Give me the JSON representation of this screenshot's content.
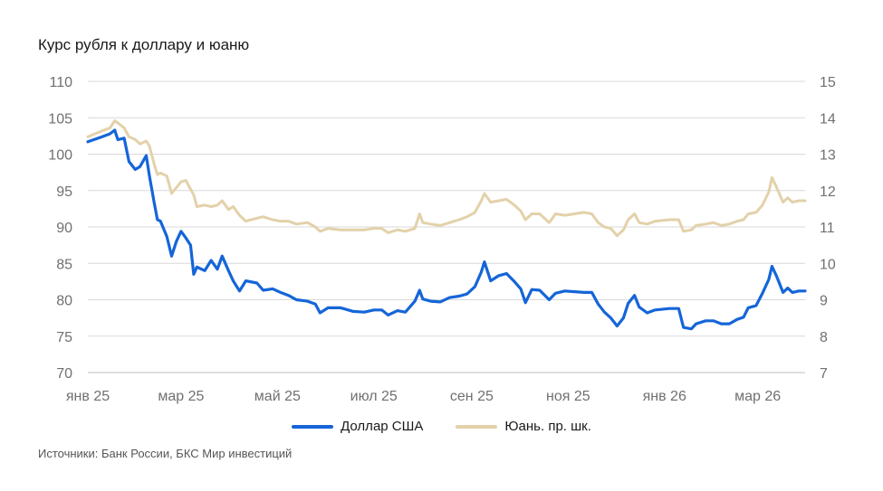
{
  "title": "Курс рубля к доллару и юаню",
  "source": "Источники: Банк России, БКС Мир инвестиций",
  "colors": {
    "usd": "#1565d8",
    "cny": "#e3d1a9",
    "grid": "#d9d9d9",
    "tick": "#707070"
  },
  "chart_data": {
    "type": "line",
    "title": "Курс рубля к доллару и юаню",
    "x_labels": [
      "янв 25",
      "мар 25",
      "май 25",
      "июл 25",
      "сен 25",
      "ноя 25",
      "янв 26",
      "мар 26"
    ],
    "x_label_dates": [
      "2025-01-01",
      "2025-03-01",
      "2025-05-01",
      "2025-07-01",
      "2025-09-01",
      "2025-11-01",
      "2026-01-01",
      "2026-03-01"
    ],
    "x_range": [
      "2025-01-01",
      "2026-03-31"
    ],
    "y_left": {
      "min": 70,
      "max": 110,
      "ticks": [
        "70",
        "75",
        "80",
        "85",
        "90",
        "95",
        "100",
        "105",
        "110"
      ]
    },
    "y_right": {
      "min": 7,
      "max": 15,
      "ticks": [
        "7",
        "8",
        "9",
        "10",
        "11",
        "12",
        "13",
        "14",
        "15"
      ]
    },
    "grid": true,
    "legend_position": "bottom",
    "series": [
      {
        "name": "Доллар США",
        "axis": "left",
        "color": "#1565d8",
        "points": [
          [
            "2025-01-01",
            101.7
          ],
          [
            "2025-01-10",
            102.4
          ],
          [
            "2025-01-15",
            102.8
          ],
          [
            "2025-01-18",
            103.3
          ],
          [
            "2025-01-20",
            102.0
          ],
          [
            "2025-01-24",
            102.2
          ],
          [
            "2025-01-27",
            99.0
          ],
          [
            "2025-01-31",
            97.9
          ],
          [
            "2025-02-03",
            98.3
          ],
          [
            "2025-02-07",
            99.8
          ],
          [
            "2025-02-09",
            97.0
          ],
          [
            "2025-02-12",
            93.3
          ],
          [
            "2025-02-14",
            91.0
          ],
          [
            "2025-02-16",
            90.8
          ],
          [
            "2025-02-20",
            88.7
          ],
          [
            "2025-02-23",
            86.0
          ],
          [
            "2025-02-26",
            88.0
          ],
          [
            "2025-03-01",
            89.4
          ],
          [
            "2025-03-04",
            88.5
          ],
          [
            "2025-03-07",
            87.5
          ],
          [
            "2025-03-09",
            83.5
          ],
          [
            "2025-03-11",
            84.5
          ],
          [
            "2025-03-16",
            84.0
          ],
          [
            "2025-03-20",
            85.4
          ],
          [
            "2025-03-24",
            84.2
          ],
          [
            "2025-03-27",
            86.0
          ],
          [
            "2025-03-31",
            84.0
          ],
          [
            "2025-04-03",
            82.6
          ],
          [
            "2025-04-07",
            81.2
          ],
          [
            "2025-04-11",
            82.6
          ],
          [
            "2025-04-18",
            82.3
          ],
          [
            "2025-04-22",
            81.3
          ],
          [
            "2025-04-28",
            81.5
          ],
          [
            "2025-05-03",
            81.0
          ],
          [
            "2025-05-08",
            80.6
          ],
          [
            "2025-05-13",
            80.0
          ],
          [
            "2025-05-20",
            79.8
          ],
          [
            "2025-05-25",
            79.4
          ],
          [
            "2025-05-28",
            78.2
          ],
          [
            "2025-06-02",
            78.9
          ],
          [
            "2025-06-10",
            78.9
          ],
          [
            "2025-06-18",
            78.4
          ],
          [
            "2025-06-25",
            78.3
          ],
          [
            "2025-07-01",
            78.6
          ],
          [
            "2025-07-06",
            78.6
          ],
          [
            "2025-07-10",
            77.9
          ],
          [
            "2025-07-16",
            78.5
          ],
          [
            "2025-07-21",
            78.3
          ],
          [
            "2025-07-27",
            79.8
          ],
          [
            "2025-07-30",
            81.3
          ],
          [
            "2025-08-01",
            80.1
          ],
          [
            "2025-08-06",
            79.8
          ],
          [
            "2025-08-12",
            79.7
          ],
          [
            "2025-08-18",
            80.3
          ],
          [
            "2025-08-24",
            80.5
          ],
          [
            "2025-08-29",
            80.8
          ],
          [
            "2025-09-03",
            81.8
          ],
          [
            "2025-09-07",
            83.8
          ],
          [
            "2025-09-09",
            85.2
          ],
          [
            "2025-09-13",
            82.6
          ],
          [
            "2025-09-18",
            83.3
          ],
          [
            "2025-09-23",
            83.6
          ],
          [
            "2025-09-28",
            82.5
          ],
          [
            "2025-10-02",
            81.5
          ],
          [
            "2025-10-05",
            79.6
          ],
          [
            "2025-10-09",
            81.4
          ],
          [
            "2025-10-14",
            81.3
          ],
          [
            "2025-10-20",
            80.0
          ],
          [
            "2025-10-24",
            80.9
          ],
          [
            "2025-10-30",
            81.2
          ],
          [
            "2025-11-05",
            81.1
          ],
          [
            "2025-11-11",
            81.0
          ],
          [
            "2025-11-16",
            81.0
          ],
          [
            "2025-11-20",
            79.4
          ],
          [
            "2025-11-24",
            78.3
          ],
          [
            "2025-11-28",
            77.5
          ],
          [
            "2025-12-02",
            76.4
          ],
          [
            "2025-12-06",
            77.5
          ],
          [
            "2025-12-09",
            79.5
          ],
          [
            "2025-12-13",
            80.6
          ],
          [
            "2025-12-16",
            79.0
          ],
          [
            "2025-12-21",
            78.2
          ],
          [
            "2025-12-26",
            78.6
          ],
          [
            "2026-01-04",
            78.8
          ],
          [
            "2026-01-10",
            78.8
          ],
          [
            "2026-01-13",
            76.2
          ],
          [
            "2026-01-18",
            76.0
          ],
          [
            "2026-01-21",
            76.7
          ],
          [
            "2026-01-27",
            77.1
          ],
          [
            "2026-02-01",
            77.1
          ],
          [
            "2026-02-06",
            76.7
          ],
          [
            "2026-02-11",
            76.7
          ],
          [
            "2026-02-16",
            77.3
          ],
          [
            "2026-02-20",
            77.6
          ],
          [
            "2026-02-23",
            78.9
          ],
          [
            "2026-02-28",
            79.2
          ],
          [
            "2026-03-04",
            80.9
          ],
          [
            "2026-03-08",
            82.8
          ],
          [
            "2026-03-10",
            84.6
          ],
          [
            "2026-03-13",
            83.2
          ],
          [
            "2026-03-17",
            81.0
          ],
          [
            "2026-03-20",
            81.6
          ],
          [
            "2026-03-23",
            81.0
          ],
          [
            "2026-03-27",
            81.2
          ],
          [
            "2026-03-31",
            81.2
          ]
        ]
      },
      {
        "name": "Юань. пр. шк.",
        "axis": "right",
        "color": "#e3d1a9",
        "points": [
          [
            "2025-01-01",
            13.48
          ],
          [
            "2025-01-10",
            13.64
          ],
          [
            "2025-01-15",
            13.72
          ],
          [
            "2025-01-18",
            13.92
          ],
          [
            "2025-01-20",
            13.86
          ],
          [
            "2025-01-24",
            13.72
          ],
          [
            "2025-01-27",
            13.48
          ],
          [
            "2025-01-31",
            13.4
          ],
          [
            "2025-02-03",
            13.28
          ],
          [
            "2025-02-07",
            13.36
          ],
          [
            "2025-02-09",
            13.22
          ],
          [
            "2025-02-12",
            12.72
          ],
          [
            "2025-02-14",
            12.44
          ],
          [
            "2025-02-16",
            12.48
          ],
          [
            "2025-02-20",
            12.4
          ],
          [
            "2025-02-23",
            11.92
          ],
          [
            "2025-02-26",
            12.08
          ],
          [
            "2025-03-01",
            12.24
          ],
          [
            "2025-03-04",
            12.28
          ],
          [
            "2025-03-07",
            12.04
          ],
          [
            "2025-03-09",
            11.88
          ],
          [
            "2025-03-11",
            11.56
          ],
          [
            "2025-03-16",
            11.6
          ],
          [
            "2025-03-20",
            11.56
          ],
          [
            "2025-03-24",
            11.6
          ],
          [
            "2025-03-27",
            11.72
          ],
          [
            "2025-03-31",
            11.48
          ],
          [
            "2025-04-03",
            11.56
          ],
          [
            "2025-04-07",
            11.32
          ],
          [
            "2025-04-11",
            11.16
          ],
          [
            "2025-04-18",
            11.24
          ],
          [
            "2025-04-22",
            11.28
          ],
          [
            "2025-04-28",
            11.2
          ],
          [
            "2025-05-03",
            11.16
          ],
          [
            "2025-05-08",
            11.16
          ],
          [
            "2025-05-13",
            11.08
          ],
          [
            "2025-05-20",
            11.12
          ],
          [
            "2025-05-25",
            11.0
          ],
          [
            "2025-05-28",
            10.88
          ],
          [
            "2025-06-02",
            10.96
          ],
          [
            "2025-06-10",
            10.92
          ],
          [
            "2025-06-18",
            10.92
          ],
          [
            "2025-06-25",
            10.92
          ],
          [
            "2025-07-01",
            10.96
          ],
          [
            "2025-07-06",
            10.96
          ],
          [
            "2025-07-10",
            10.84
          ],
          [
            "2025-07-16",
            10.92
          ],
          [
            "2025-07-21",
            10.88
          ],
          [
            "2025-07-27",
            10.96
          ],
          [
            "2025-07-30",
            11.36
          ],
          [
            "2025-08-01",
            11.12
          ],
          [
            "2025-08-06",
            11.08
          ],
          [
            "2025-08-12",
            11.04
          ],
          [
            "2025-08-18",
            11.12
          ],
          [
            "2025-08-24",
            11.2
          ],
          [
            "2025-08-29",
            11.28
          ],
          [
            "2025-09-03",
            11.4
          ],
          [
            "2025-09-07",
            11.72
          ],
          [
            "2025-09-09",
            11.92
          ],
          [
            "2025-09-13",
            11.68
          ],
          [
            "2025-09-18",
            11.72
          ],
          [
            "2025-09-23",
            11.76
          ],
          [
            "2025-09-28",
            11.6
          ],
          [
            "2025-10-02",
            11.44
          ],
          [
            "2025-10-05",
            11.2
          ],
          [
            "2025-10-09",
            11.36
          ],
          [
            "2025-10-14",
            11.36
          ],
          [
            "2025-10-20",
            11.12
          ],
          [
            "2025-10-24",
            11.36
          ],
          [
            "2025-10-30",
            11.32
          ],
          [
            "2025-11-05",
            11.36
          ],
          [
            "2025-11-11",
            11.4
          ],
          [
            "2025-11-16",
            11.36
          ],
          [
            "2025-11-20",
            11.12
          ],
          [
            "2025-11-24",
            11.0
          ],
          [
            "2025-11-28",
            10.96
          ],
          [
            "2025-12-02",
            10.76
          ],
          [
            "2025-12-06",
            10.92
          ],
          [
            "2025-12-09",
            11.2
          ],
          [
            "2025-12-13",
            11.36
          ],
          [
            "2025-12-16",
            11.12
          ],
          [
            "2025-12-21",
            11.08
          ],
          [
            "2025-12-26",
            11.16
          ],
          [
            "2026-01-04",
            11.2
          ],
          [
            "2026-01-10",
            11.2
          ],
          [
            "2026-01-13",
            10.88
          ],
          [
            "2026-01-18",
            10.92
          ],
          [
            "2026-01-21",
            11.04
          ],
          [
            "2026-01-27",
            11.08
          ],
          [
            "2026-02-01",
            11.12
          ],
          [
            "2026-02-06",
            11.04
          ],
          [
            "2026-02-11",
            11.08
          ],
          [
            "2026-02-16",
            11.16
          ],
          [
            "2026-02-20",
            11.2
          ],
          [
            "2026-02-23",
            11.36
          ],
          [
            "2026-02-28",
            11.4
          ],
          [
            "2026-03-04",
            11.6
          ],
          [
            "2026-03-08",
            11.96
          ],
          [
            "2026-03-10",
            12.36
          ],
          [
            "2026-03-13",
            12.08
          ],
          [
            "2026-03-17",
            11.68
          ],
          [
            "2026-03-20",
            11.8
          ],
          [
            "2026-03-23",
            11.68
          ],
          [
            "2026-03-27",
            11.72
          ],
          [
            "2026-03-31",
            11.72
          ]
        ]
      }
    ]
  }
}
